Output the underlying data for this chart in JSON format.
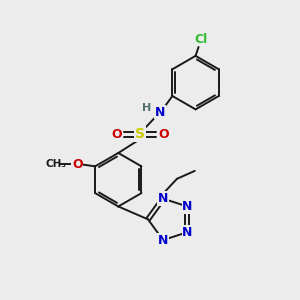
{
  "background_color": "#ececec",
  "bond_color": "#1a1a1a",
  "atom_colors": {
    "N": "#0000cc",
    "O": "#cc0000",
    "S": "#cccc00",
    "Cl": "#33bb33",
    "H": "#507070",
    "C": "#1a1a1a"
  },
  "figsize": [
    3.0,
    3.0
  ],
  "dpi": 100
}
